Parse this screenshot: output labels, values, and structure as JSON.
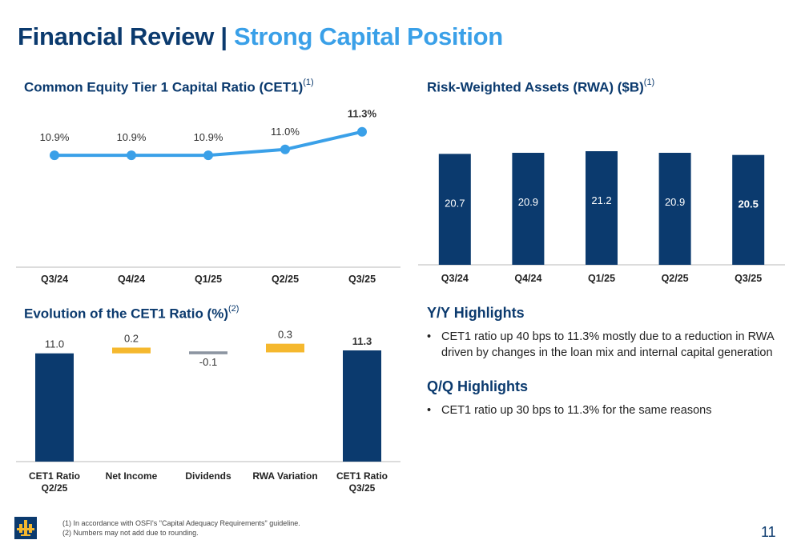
{
  "header": {
    "title_main": "Financial Review |",
    "title_accent": "Strong Capital Position"
  },
  "colors": {
    "navy": "#0b3a6e",
    "light_blue": "#3aa0e8",
    "gold": "#f5b82e",
    "gray": "#8c95a1"
  },
  "cet1_section": {
    "title": "Common Equity Tier 1 Capital Ratio (CET1)",
    "sup": "(1)"
  },
  "rwa_section": {
    "title": "Risk-Weighted Assets (RWA) ($B)",
    "sup": "(1)"
  },
  "evolution_section": {
    "title": "Evolution of the CET1 Ratio (%)",
    "sup": "(2)"
  },
  "highlights": {
    "yy_title": "Y/Y Highlights",
    "yy_bullet": "CET1 ratio up 40 bps to 11.3% mostly due to a reduction in RWA driven by changes in the loan mix and internal capital generation",
    "qq_title": "Q/Q Highlights",
    "qq_bullet": "CET1 ratio up 30 bps to 11.3% for the same reasons",
    "bullet_char": "•"
  },
  "footnotes": {
    "note1": "(1) In accordance with OSFI's \"Capital Adequacy Requirements\" guideline.",
    "note2": "(2) Numbers may not add due to rounding."
  },
  "page_number": "11",
  "logo_icon": "laurentian-bank-logo-icon",
  "chart_data": [
    {
      "id": "cet1-line",
      "type": "line",
      "title": "Common Equity Tier 1 Capital Ratio (CET1)",
      "categories": [
        "Q3/24",
        "Q4/24",
        "Q1/25",
        "Q2/25",
        "Q3/25"
      ],
      "values": [
        10.9,
        10.9,
        10.9,
        11.0,
        11.3
      ],
      "labels": [
        "10.9%",
        "10.9%",
        "10.9%",
        "11.0%",
        "11.3%"
      ],
      "emphasized_last": true,
      "ylim": [
        9.0,
        11.5
      ],
      "grid": false
    },
    {
      "id": "rwa-bar",
      "type": "bar",
      "title": "Risk-Weighted Assets (RWA) ($B)",
      "categories": [
        "Q3/24",
        "Q4/24",
        "Q1/25",
        "Q2/25",
        "Q3/25"
      ],
      "values": [
        20.7,
        20.9,
        21.2,
        20.9,
        20.5
      ],
      "labels": [
        "20.7",
        "20.9",
        "21.2",
        "20.9",
        "20.5"
      ],
      "emphasized_last": true,
      "ylim": [
        0,
        21.2
      ],
      "grid": false
    },
    {
      "id": "cet1-waterfall",
      "type": "bar",
      "subtype": "waterfall",
      "title": "Evolution of the CET1 Ratio (%)",
      "categories": [
        "CET1 Ratio Q2/25",
        "Net Income",
        "Dividends",
        "RWA Variation",
        "CET1 Ratio Q3/25"
      ],
      "category_lines": [
        [
          "CET1 Ratio",
          "Q2/25"
        ],
        [
          "Net Income"
        ],
        [
          "Dividends"
        ],
        [
          "RWA Variation"
        ],
        [
          "CET1 Ratio",
          "Q3/25"
        ]
      ],
      "values": [
        11.0,
        0.2,
        -0.1,
        0.3,
        11.3
      ],
      "labels": [
        "11.0",
        "0.2",
        "-0.1",
        "0.3",
        "11.3"
      ],
      "kinds": [
        "total",
        "delta",
        "delta",
        "delta",
        "total"
      ],
      "ylim": [
        0,
        11.3
      ],
      "grid": false
    }
  ]
}
